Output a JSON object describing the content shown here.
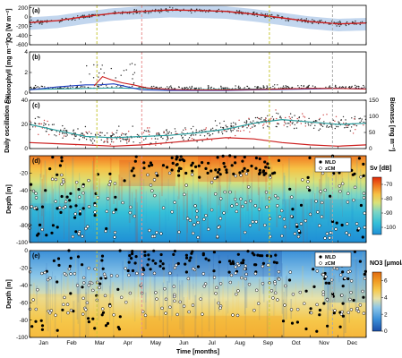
{
  "chart_data": [
    {
      "type": "scatter",
      "panel_label": "(a)",
      "ylabel": "Qo [W m⁻²]",
      "ylim": [
        -600,
        250
      ],
      "yticks": [
        200,
        0,
        -200,
        -400,
        -600
      ],
      "ytick_labels": [
        "200",
        "0",
        "-200",
        "-400",
        "-600"
      ],
      "colors": {
        "points": "#2a2a2a",
        "envelope": "#8fb4e0",
        "mean_line": "#cc1f1f"
      },
      "series": [
        {
          "role": "mean",
          "x": [
            0,
            1,
            2,
            3,
            4,
            5,
            6,
            7,
            8,
            9,
            10,
            11,
            12
          ],
          "values": [
            -120,
            -80,
            10,
            80,
            120,
            150,
            140,
            120,
            60,
            -20,
            -100,
            -150,
            -130
          ]
        }
      ]
    },
    {
      "type": "scatter",
      "panel_label": "(b)",
      "ylabel": "Chlorophyll [mg m⁻³]",
      "ylim": [
        0,
        4
      ],
      "yticks": [
        0,
        2,
        4
      ],
      "ytick_labels": [
        "0",
        "2",
        "4"
      ],
      "colors": {
        "points": "#2a2a2a",
        "blue_line": "#1f3fbf",
        "red_line": "#cc1f1f",
        "teal_line": "#2a9d9d"
      },
      "series": [
        {
          "role": "blue",
          "x": [
            0,
            1,
            2,
            2.5,
            3,
            3.5,
            4,
            5,
            6,
            7,
            8,
            9,
            10,
            11,
            12
          ],
          "values": [
            0.3,
            0.6,
            0.8,
            0.8,
            0.9,
            0.6,
            0.3,
            0.25,
            0.25,
            0.25,
            0.3,
            0.35,
            0.4,
            0.45,
            0.4
          ]
        },
        {
          "role": "red",
          "x": [
            2.3,
            2.6,
            2.9,
            3.3,
            3.7,
            4.2,
            5,
            6,
            7,
            8,
            9,
            10,
            11,
            12
          ],
          "values": [
            0.7,
            1.6,
            1.3,
            1.0,
            0.8,
            0.5,
            0.35,
            0.3,
            0.3,
            0.35,
            0.4,
            0.45,
            0.45,
            0.4
          ]
        },
        {
          "role": "teal",
          "x": [
            0,
            1,
            2,
            3,
            4,
            5,
            6,
            7,
            8,
            9,
            10,
            11,
            12
          ],
          "values": [
            0.35,
            0.4,
            0.45,
            0.5,
            0.45,
            0.35,
            0.35,
            0.35,
            0.4,
            0.4,
            0.45,
            0.45,
            0.4
          ]
        }
      ]
    },
    {
      "type": "scatter",
      "panel_label": "(c)",
      "ylabel": "Daily oscillation Sv",
      "ylabel2": "Biomass [mg m⁻³]",
      "ylim": [
        0,
        40
      ],
      "ylim2": [
        0,
        150
      ],
      "yticks": [
        0,
        20,
        40
      ],
      "ytick_labels": [
        "0",
        "20",
        "40"
      ],
      "yticks2": [
        0,
        50,
        100,
        150
      ],
      "ytick_labels2": [
        "0",
        "50",
        "100",
        "150"
      ],
      "colors": {
        "points": "#2a2a2a",
        "red_points": "#d04040",
        "teal_line": "#2a9d9d",
        "red_line": "#cc1f1f"
      },
      "series": [
        {
          "role": "teal",
          "x": [
            0,
            1,
            2,
            3,
            4,
            5,
            6,
            7,
            8,
            9,
            10,
            11,
            12
          ],
          "values": [
            20,
            15,
            10,
            9,
            10,
            11,
            13,
            16,
            21,
            24,
            22,
            20,
            21
          ]
        },
        {
          "role": "red",
          "x": [
            0,
            1,
            2,
            3,
            4,
            5,
            6,
            7,
            8,
            9,
            10,
            11,
            12
          ],
          "values": [
            5,
            4,
            3,
            2,
            3,
            5,
            7,
            9,
            8,
            5,
            3,
            2,
            3
          ]
        }
      ]
    },
    {
      "type": "heatmap",
      "panel_label": "(d)",
      "ylabel": "Depth [m]",
      "ylim": [
        -100,
        0
      ],
      "yticks": [
        -20,
        -40,
        -60,
        -80,
        -100
      ],
      "ytick_labels": [
        "-20",
        "-40",
        "-60",
        "-80",
        "-100"
      ],
      "colorbar_label": "Sv [dB]",
      "colorbar_ticks": [
        -70,
        -80,
        -90,
        -100
      ],
      "colorbar_tick_labels": [
        "-70",
        "-80",
        "-90",
        "-100"
      ],
      "colorbar_range": [
        -105,
        -65
      ],
      "colormap": [
        "#1f8fd6",
        "#35c0d8",
        "#7ed6c4",
        "#d9e27a",
        "#f6c246",
        "#f07a22",
        "#e02a0a"
      ],
      "legend": [
        "MLD",
        "zCM"
      ]
    },
    {
      "type": "heatmap",
      "panel_label": "(e)",
      "ylabel": "Depth [m]",
      "xlabel": "Time [months]",
      "ylim": [
        -100,
        0
      ],
      "yticks": [
        0,
        -20,
        -40,
        -60,
        -80,
        -100
      ],
      "ytick_labels": [
        "0",
        "-20",
        "-40",
        "-60",
        "-80",
        "-100"
      ],
      "colorbar_label": "NO3 [μmol/l]",
      "colorbar_ticks": [
        0,
        2,
        4,
        6
      ],
      "colorbar_tick_labels": [
        "0",
        "2",
        "4",
        "6"
      ],
      "colorbar_range": [
        0,
        7
      ],
      "colormap": [
        "#1a4ea8",
        "#3a8fd8",
        "#8cc6e8",
        "#e8e2a8",
        "#f6c84a",
        "#f09a22",
        "#e06a10"
      ],
      "legend": [
        "MLD",
        "zCM"
      ],
      "categories": [
        "Jan",
        "Feb",
        "Mar",
        "Apr",
        "May",
        "Jun",
        "Jul",
        "Aug",
        "Sep",
        "Oct",
        "Nov",
        "Dec"
      ]
    }
  ],
  "vertical_markers": [
    {
      "x": 2.4,
      "color": "#c8c83a"
    },
    {
      "x": 4.0,
      "color": "#e89090"
    },
    {
      "x": 8.55,
      "color": "#c8c83a"
    },
    {
      "x": 10.8,
      "color": "#aaaaaa"
    }
  ]
}
